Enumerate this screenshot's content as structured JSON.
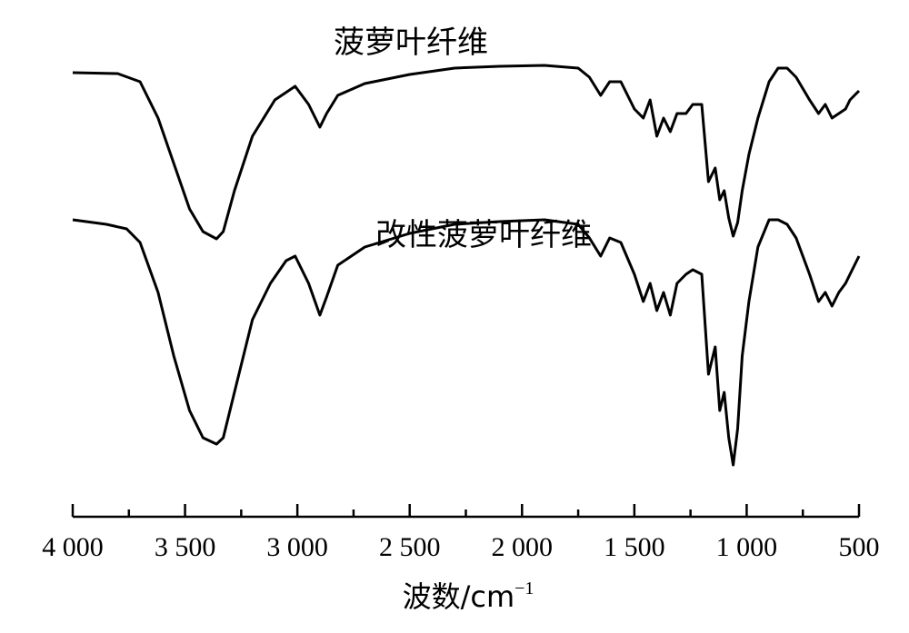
{
  "chart_data": {
    "type": "line",
    "title": "",
    "xlabel": "波数/cm",
    "xlabel_sup": "−1",
    "ylabel": "",
    "xlim": [
      4000,
      500
    ],
    "x_reversed": true,
    "y_axis_visible": false,
    "grid": false,
    "x_ticks": [
      {
        "value": 4000,
        "label": "4 000"
      },
      {
        "value": 3500,
        "label": "3 500"
      },
      {
        "value": 3000,
        "label": "3 000"
      },
      {
        "value": 2500,
        "label": "2 500"
      },
      {
        "value": 2000,
        "label": "2 000"
      },
      {
        "value": 1500,
        "label": "1 500"
      },
      {
        "value": 1000,
        "label": "1 000"
      },
      {
        "value": 500,
        "label": "500"
      }
    ],
    "series": [
      {
        "name": "菠萝叶纤维",
        "points": [
          [
            4000,
            10
          ],
          [
            3800,
            11
          ],
          [
            3700,
            20
          ],
          [
            3620,
            60
          ],
          [
            3550,
            110
          ],
          [
            3480,
            160
          ],
          [
            3420,
            185
          ],
          [
            3360,
            193
          ],
          [
            3330,
            185
          ],
          [
            3280,
            140
          ],
          [
            3200,
            80
          ],
          [
            3100,
            40
          ],
          [
            3010,
            25
          ],
          [
            2950,
            45
          ],
          [
            2900,
            70
          ],
          [
            2870,
            55
          ],
          [
            2820,
            35
          ],
          [
            2700,
            22
          ],
          [
            2500,
            12
          ],
          [
            2300,
            5
          ],
          [
            2100,
            3
          ],
          [
            1900,
            2
          ],
          [
            1750,
            5
          ],
          [
            1700,
            15
          ],
          [
            1650,
            35
          ],
          [
            1610,
            20
          ],
          [
            1560,
            20
          ],
          [
            1500,
            50
          ],
          [
            1460,
            60
          ],
          [
            1430,
            40
          ],
          [
            1400,
            80
          ],
          [
            1370,
            60
          ],
          [
            1340,
            75
          ],
          [
            1310,
            55
          ],
          [
            1270,
            55
          ],
          [
            1240,
            45
          ],
          [
            1200,
            45
          ],
          [
            1170,
            130
          ],
          [
            1140,
            115
          ],
          [
            1120,
            150
          ],
          [
            1100,
            140
          ],
          [
            1080,
            170
          ],
          [
            1060,
            190
          ],
          [
            1040,
            175
          ],
          [
            1020,
            140
          ],
          [
            990,
            100
          ],
          [
            950,
            60
          ],
          [
            900,
            20
          ],
          [
            860,
            5
          ],
          [
            820,
            5
          ],
          [
            780,
            15
          ],
          [
            720,
            40
          ],
          [
            680,
            55
          ],
          [
            650,
            45
          ],
          [
            620,
            60
          ],
          [
            590,
            55
          ],
          [
            560,
            50
          ],
          [
            540,
            40
          ],
          [
            500,
            30
          ]
        ]
      },
      {
        "name": "改性菠萝叶纤维",
        "points": [
          [
            4000,
            70
          ],
          [
            3850,
            75
          ],
          [
            3760,
            80
          ],
          [
            3700,
            95
          ],
          [
            3620,
            150
          ],
          [
            3550,
            220
          ],
          [
            3480,
            280
          ],
          [
            3420,
            310
          ],
          [
            3360,
            317
          ],
          [
            3330,
            310
          ],
          [
            3280,
            260
          ],
          [
            3200,
            180
          ],
          [
            3120,
            140
          ],
          [
            3050,
            115
          ],
          [
            3010,
            110
          ],
          [
            2950,
            140
          ],
          [
            2900,
            175
          ],
          [
            2870,
            155
          ],
          [
            2820,
            120
          ],
          [
            2700,
            100
          ],
          [
            2500,
            85
          ],
          [
            2300,
            75
          ],
          [
            2100,
            72
          ],
          [
            1900,
            70
          ],
          [
            1750,
            75
          ],
          [
            1700,
            90
          ],
          [
            1650,
            110
          ],
          [
            1610,
            90
          ],
          [
            1560,
            95
          ],
          [
            1500,
            130
          ],
          [
            1460,
            160
          ],
          [
            1430,
            140
          ],
          [
            1400,
            170
          ],
          [
            1370,
            150
          ],
          [
            1340,
            175
          ],
          [
            1310,
            140
          ],
          [
            1270,
            130
          ],
          [
            1240,
            125
          ],
          [
            1200,
            130
          ],
          [
            1170,
            240
          ],
          [
            1140,
            210
          ],
          [
            1120,
            280
          ],
          [
            1100,
            260
          ],
          [
            1080,
            310
          ],
          [
            1060,
            340
          ],
          [
            1040,
            300
          ],
          [
            1020,
            220
          ],
          [
            990,
            160
          ],
          [
            950,
            100
          ],
          [
            900,
            70
          ],
          [
            860,
            70
          ],
          [
            820,
            75
          ],
          [
            780,
            90
          ],
          [
            720,
            130
          ],
          [
            680,
            160
          ],
          [
            650,
            150
          ],
          [
            620,
            165
          ],
          [
            590,
            150
          ],
          [
            560,
            140
          ],
          [
            540,
            130
          ],
          [
            500,
            110
          ]
        ]
      }
    ]
  }
}
